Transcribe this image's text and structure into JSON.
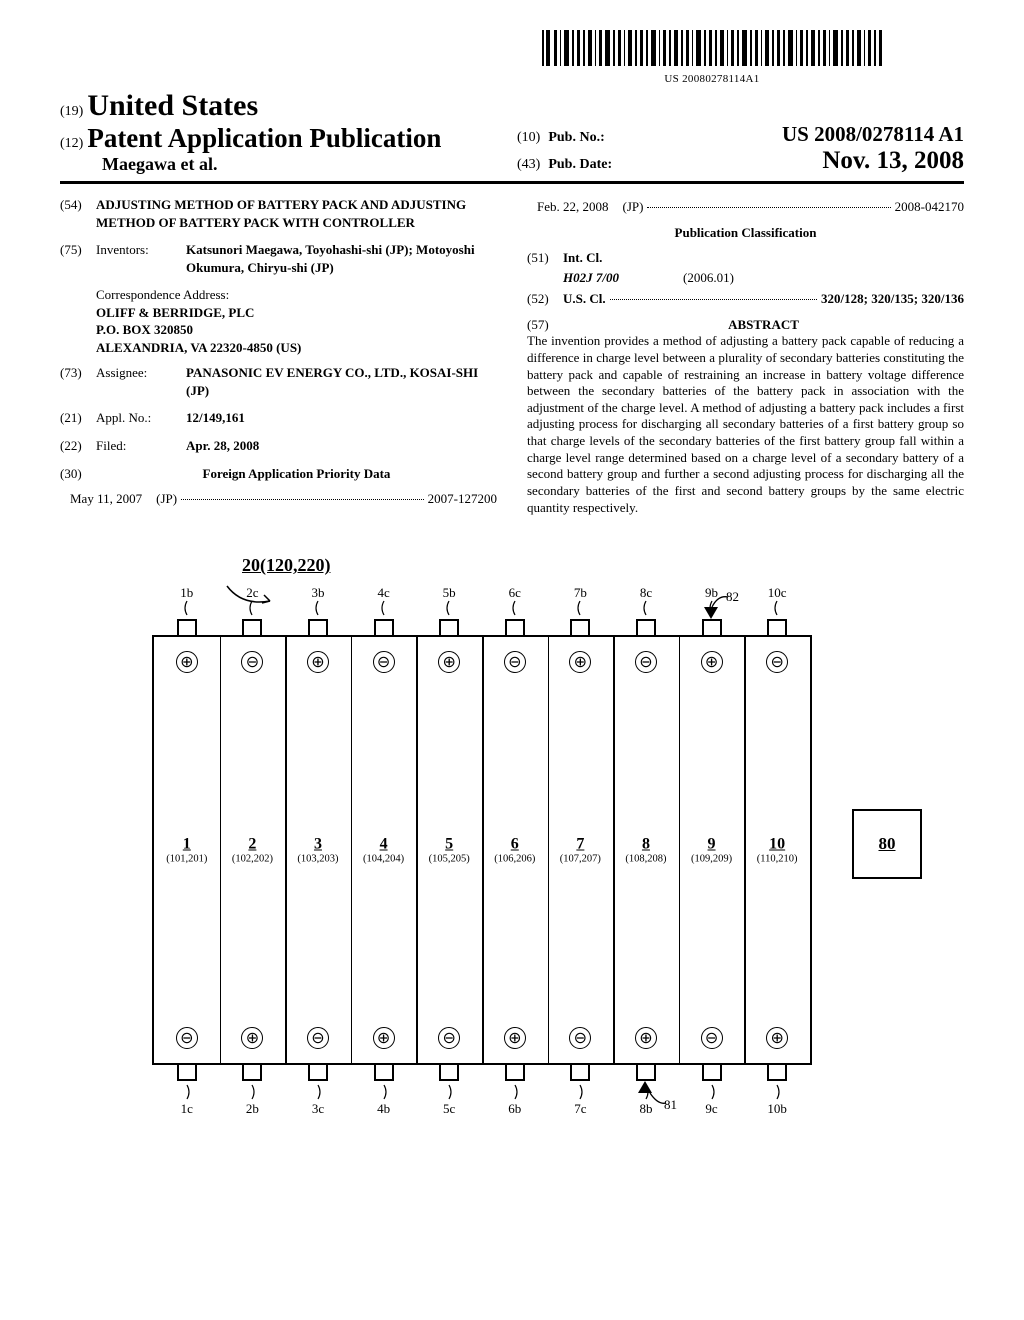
{
  "barcode_number": "US 20080278114A1",
  "header": {
    "code19": "(19)",
    "country": "United States",
    "code12": "(12)",
    "doc_type": "Patent Application Publication",
    "authors_line": "Maegawa et al.",
    "code10": "(10)",
    "pubno_label": "Pub. No.:",
    "pubno": "US 2008/0278114 A1",
    "code43": "(43)",
    "pubdate_label": "Pub. Date:",
    "pubdate": "Nov. 13, 2008"
  },
  "biblio": {
    "c54": "(54)",
    "title": "ADJUSTING METHOD OF BATTERY PACK AND ADJUSTING METHOD OF BATTERY PACK WITH CONTROLLER",
    "c75": "(75)",
    "inventors_label": "Inventors:",
    "inventors_val": "Katsunori Maegawa, Toyohashi-shi (JP); Motoyoshi Okumura, Chiryu-shi (JP)",
    "corr_heading": "Correspondence Address:",
    "corr1": "OLIFF & BERRIDGE, PLC",
    "corr2": "P.O. BOX 320850",
    "corr3": "ALEXANDRIA, VA 22320-4850 (US)",
    "c73": "(73)",
    "assignee_label": "Assignee:",
    "assignee_val": "PANASONIC EV ENERGY CO., LTD., KOSAI-SHI (JP)",
    "c21": "(21)",
    "applno_label": "Appl. No.:",
    "applno_val": "12/149,161",
    "c22": "(22)",
    "filed_label": "Filed:",
    "filed_val": "Apr. 28, 2008",
    "c30": "(30)",
    "foreign_heading": "Foreign Application Priority Data",
    "fp1_date": "May 11, 2007",
    "fp1_cc": "(JP)",
    "fp1_num": "2007-127200",
    "fp2_date": "Feb. 22, 2008",
    "fp2_cc": "(JP)",
    "fp2_num": "2008-042170",
    "pubclass_heading": "Publication Classification",
    "c51": "(51)",
    "intcl_label": "Int. Cl.",
    "intcl_code": "H02J  7/00",
    "intcl_date": "(2006.01)",
    "c52": "(52)",
    "uscl_label": "U.S. Cl.",
    "uscl_val": "320/128; 320/135; 320/136",
    "c57": "(57)",
    "abstract_label": "ABSTRACT",
    "abstract_text": "The invention provides a method of adjusting a battery pack capable of reducing a difference in charge level between a plurality of secondary batteries constituting the battery pack and capable of restraining an increase in battery voltage difference between the secondary batteries of the battery pack in association with the adjustment of the charge level. A method of adjusting a battery pack includes a first adjusting process for discharging all secondary batteries of a first battery group so that charge levels of the secondary batteries of the first battery group fall within a charge level range determined based on a charge level of a secondary battery of a second battery group and further a second adjusting process for discharging all the secondary batteries of the first and second battery groups by the same electric quantity respectively."
  },
  "figure": {
    "main_label": "20(120,220)",
    "box80": "80",
    "sensor_top": "82",
    "sensor_bot": "81",
    "top_tabs": [
      "1b",
      "2c",
      "3b",
      "4c",
      "5b",
      "6c",
      "7b",
      "8c",
      "9b",
      "10c"
    ],
    "bot_tabs": [
      "1c",
      "2b",
      "3c",
      "4b",
      "5c",
      "6b",
      "7c",
      "8b",
      "9c",
      "10b"
    ],
    "top_terms": [
      "⊕",
      "⊖",
      "⊕",
      "⊖",
      "⊕",
      "⊖",
      "⊕",
      "⊖",
      "⊕",
      "⊖"
    ],
    "bot_terms": [
      "⊖",
      "⊕",
      "⊖",
      "⊕",
      "⊖",
      "⊕",
      "⊖",
      "⊕",
      "⊖",
      "⊕"
    ],
    "cells_num": [
      "1",
      "2",
      "3",
      "4",
      "5",
      "6",
      "7",
      "8",
      "9",
      "10"
    ],
    "cells_sub": [
      "(101,201)",
      "(102,202)",
      "(103,203)",
      "(104,204)",
      "(105,205)",
      "(106,206)",
      "(107,207)",
      "(108,208)",
      "(109,209)",
      "(110,210)"
    ]
  }
}
